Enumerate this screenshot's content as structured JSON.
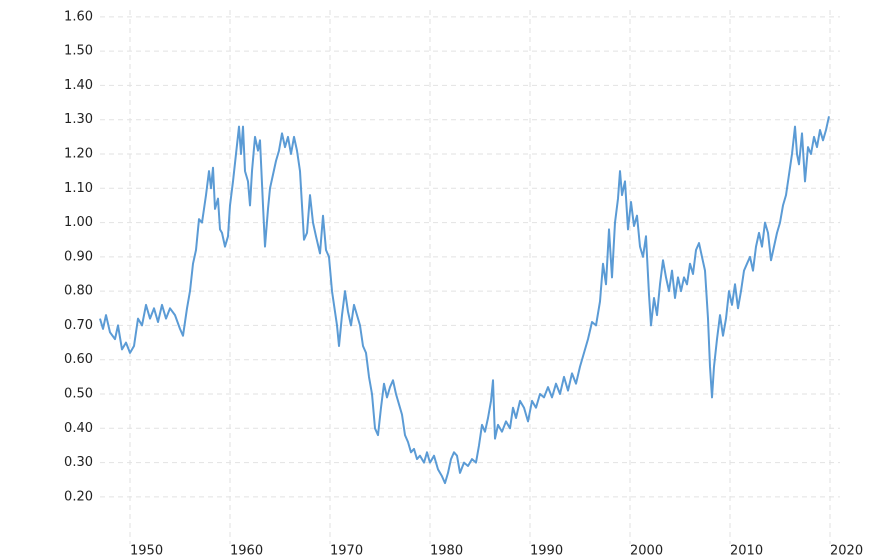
{
  "chart_data": {
    "type": "line",
    "x": [
      1947.0,
      1947.3,
      1947.6,
      1948.0,
      1948.5,
      1948.8,
      1949.2,
      1949.6,
      1950.0,
      1950.4,
      1950.8,
      1951.2,
      1951.6,
      1952.0,
      1952.4,
      1952.8,
      1953.2,
      1953.6,
      1954.0,
      1954.5,
      1955.0,
      1955.3,
      1955.7,
      1956.0,
      1956.3,
      1956.6,
      1956.9,
      1957.2,
      1957.6,
      1957.9,
      1958.1,
      1958.3,
      1958.5,
      1958.8,
      1959.0,
      1959.2,
      1959.5,
      1959.8,
      1960.0,
      1960.3,
      1960.6,
      1960.9,
      1961.1,
      1961.3,
      1961.5,
      1961.8,
      1962.0,
      1962.2,
      1962.5,
      1962.8,
      1963.0,
      1963.3,
      1963.5,
      1963.8,
      1964.0,
      1964.3,
      1964.6,
      1964.9,
      1965.2,
      1965.5,
      1965.8,
      1966.1,
      1966.4,
      1966.7,
      1967.0,
      1967.2,
      1967.4,
      1967.7,
      1968.0,
      1968.3,
      1968.6,
      1969.0,
      1969.3,
      1969.6,
      1969.9,
      1970.2,
      1970.4,
      1970.7,
      1970.9,
      1971.2,
      1971.5,
      1971.8,
      1972.1,
      1972.4,
      1972.7,
      1973.0,
      1973.3,
      1973.6,
      1973.9,
      1974.2,
      1974.5,
      1974.8,
      1975.1,
      1975.4,
      1975.7,
      1976.0,
      1976.3,
      1976.6,
      1976.9,
      1977.2,
      1977.5,
      1977.8,
      1978.1,
      1978.4,
      1978.7,
      1979.0,
      1979.4,
      1979.7,
      1980.0,
      1980.4,
      1980.8,
      1981.2,
      1981.5,
      1981.8,
      1982.1,
      1982.4,
      1982.7,
      1983.0,
      1983.4,
      1983.8,
      1984.2,
      1984.6,
      1984.9,
      1985.2,
      1985.5,
      1985.8,
      1986.1,
      1986.3,
      1986.5,
      1986.8,
      1987.2,
      1987.6,
      1988.0,
      1988.3,
      1988.6,
      1989.0,
      1989.4,
      1989.8,
      1990.2,
      1990.6,
      1991.0,
      1991.4,
      1991.8,
      1992.2,
      1992.6,
      1993.0,
      1993.4,
      1993.8,
      1994.2,
      1994.6,
      1995.0,
      1995.4,
      1995.8,
      1996.2,
      1996.6,
      1997.0,
      1997.3,
      1997.6,
      1997.9,
      1998.2,
      1998.5,
      1998.8,
      1999.0,
      1999.2,
      1999.5,
      1999.8,
      2000.1,
      2000.4,
      2000.7,
      2001.0,
      2001.3,
      2001.6,
      2001.9,
      2002.1,
      2002.4,
      2002.7,
      2003.0,
      2003.3,
      2003.6,
      2003.9,
      2004.2,
      2004.5,
      2004.8,
      2005.1,
      2005.4,
      2005.7,
      2006.0,
      2006.3,
      2006.6,
      2006.9,
      2007.2,
      2007.5,
      2007.8,
      2008.0,
      2008.2,
      2008.4,
      2008.7,
      2009.0,
      2009.3,
      2009.6,
      2009.9,
      2010.2,
      2010.5,
      2010.8,
      2011.1,
      2011.4,
      2011.7,
      2012.0,
      2012.3,
      2012.6,
      2012.9,
      2013.2,
      2013.5,
      2013.8,
      2014.1,
      2014.4,
      2014.7,
      2015.0,
      2015.3,
      2015.6,
      2015.9,
      2016.2,
      2016.5,
      2016.7,
      2016.9,
      2017.2,
      2017.5,
      2017.8,
      2018.1,
      2018.4,
      2018.7,
      2019.0,
      2019.3,
      2019.6,
      2019.9
    ],
    "values": [
      0.72,
      0.69,
      0.73,
      0.68,
      0.66,
      0.7,
      0.63,
      0.65,
      0.62,
      0.64,
      0.72,
      0.7,
      0.76,
      0.72,
      0.75,
      0.71,
      0.76,
      0.72,
      0.75,
      0.73,
      0.69,
      0.67,
      0.75,
      0.8,
      0.88,
      0.92,
      1.01,
      1.0,
      1.08,
      1.15,
      1.1,
      1.16,
      1.04,
      1.07,
      0.98,
      0.97,
      0.93,
      0.96,
      1.05,
      1.12,
      1.2,
      1.28,
      1.2,
      1.28,
      1.15,
      1.12,
      1.05,
      1.15,
      1.25,
      1.21,
      1.24,
      1.05,
      0.93,
      1.04,
      1.1,
      1.14,
      1.18,
      1.21,
      1.26,
      1.22,
      1.25,
      1.2,
      1.25,
      1.21,
      1.15,
      1.05,
      0.95,
      0.97,
      1.08,
      1.0,
      0.96,
      0.91,
      1.02,
      0.92,
      0.9,
      0.8,
      0.76,
      0.7,
      0.64,
      0.73,
      0.8,
      0.74,
      0.7,
      0.76,
      0.73,
      0.7,
      0.64,
      0.62,
      0.55,
      0.5,
      0.4,
      0.38,
      0.46,
      0.53,
      0.49,
      0.52,
      0.54,
      0.5,
      0.47,
      0.44,
      0.38,
      0.36,
      0.33,
      0.34,
      0.31,
      0.32,
      0.3,
      0.33,
      0.3,
      0.32,
      0.28,
      0.26,
      0.24,
      0.27,
      0.31,
      0.33,
      0.32,
      0.27,
      0.3,
      0.29,
      0.31,
      0.3,
      0.35,
      0.41,
      0.39,
      0.43,
      0.48,
      0.54,
      0.37,
      0.41,
      0.39,
      0.42,
      0.4,
      0.46,
      0.43,
      0.48,
      0.46,
      0.42,
      0.48,
      0.46,
      0.5,
      0.49,
      0.52,
      0.49,
      0.53,
      0.5,
      0.55,
      0.51,
      0.56,
      0.53,
      0.58,
      0.62,
      0.66,
      0.71,
      0.7,
      0.77,
      0.88,
      0.82,
      0.98,
      0.84,
      1.0,
      1.07,
      1.15,
      1.08,
      1.12,
      0.98,
      1.06,
      0.99,
      1.02,
      0.93,
      0.9,
      0.96,
      0.79,
      0.7,
      0.78,
      0.73,
      0.82,
      0.89,
      0.84,
      0.8,
      0.86,
      0.78,
      0.84,
      0.8,
      0.84,
      0.82,
      0.88,
      0.85,
      0.92,
      0.94,
      0.9,
      0.86,
      0.72,
      0.58,
      0.49,
      0.58,
      0.66,
      0.73,
      0.67,
      0.72,
      0.8,
      0.76,
      0.82,
      0.75,
      0.8,
      0.86,
      0.88,
      0.9,
      0.86,
      0.93,
      0.97,
      0.93,
      1.0,
      0.97,
      0.89,
      0.93,
      0.97,
      1.0,
      1.05,
      1.08,
      1.14,
      1.2,
      1.28,
      1.2,
      1.17,
      1.26,
      1.12,
      1.22,
      1.2,
      1.25,
      1.22,
      1.27,
      1.24,
      1.27,
      1.31
    ],
    "color": "#5b9bd5",
    "xlim": [
      1947,
      2021
    ],
    "ylim": [
      0.08,
      1.62
    ],
    "xticks": [
      1950,
      1960,
      1970,
      1980,
      1990,
      2000,
      2010,
      2020
    ],
    "yticks": [
      {
        "value": 0.2,
        "label": "0.20"
      },
      {
        "value": 0.3,
        "label": "0.30"
      },
      {
        "value": 0.4,
        "label": "0.40"
      },
      {
        "value": 0.5,
        "label": "0.50"
      },
      {
        "value": 0.6,
        "label": "0.60"
      },
      {
        "value": 0.7,
        "label": "0.70"
      },
      {
        "value": 0.8,
        "label": "0.80"
      },
      {
        "value": 0.9,
        "label": "0.90"
      },
      {
        "value": 1.0,
        "label": "1.00"
      },
      {
        "value": 1.1,
        "label": "1.10"
      },
      {
        "value": 1.2,
        "label": "1.20"
      },
      {
        "value": 1.3,
        "label": "1.30"
      },
      {
        "value": 1.4,
        "label": "1.40"
      },
      {
        "value": 1.5,
        "label": "1.50"
      },
      {
        "value": 1.6,
        "label": "1.60"
      }
    ],
    "grid": true
  }
}
